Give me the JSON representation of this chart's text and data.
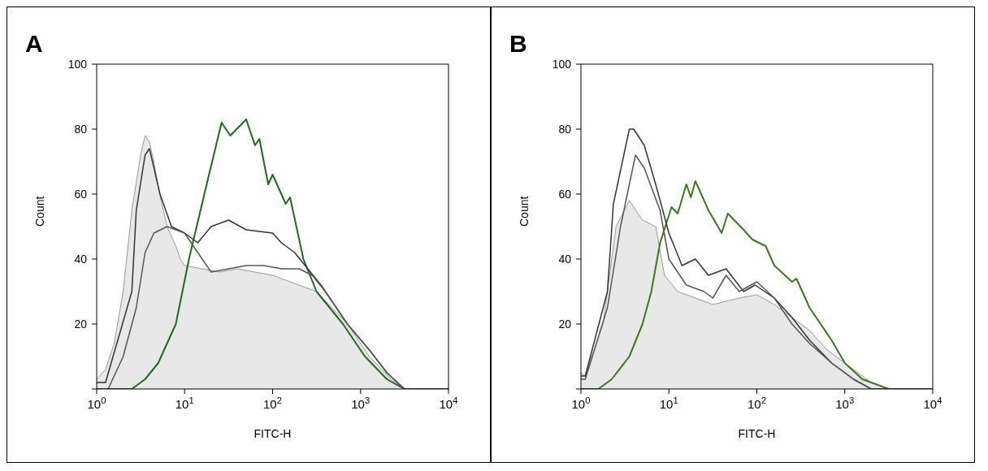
{
  "chart_data": [
    {
      "type": "line",
      "title": "A",
      "xlabel": "FITC-H",
      "ylabel": "Count",
      "log": "x",
      "xlim": [
        1,
        10000
      ],
      "ylim": [
        0,
        100
      ],
      "xticks": [
        {
          "value": 1,
          "label": "10$^{0}$"
        },
        {
          "value": 10,
          "label": "10$^{1}$"
        },
        {
          "value": 100,
          "label": "10$^{2}$"
        },
        {
          "value": 1000,
          "label": "10$^{3}$"
        },
        {
          "value": 10000,
          "label": "10$^{4}$"
        }
      ],
      "yticks": [
        {
          "value": 0,
          "label": null
        },
        20,
        40,
        60,
        80,
        100
      ],
      "marker": "none",
      "line_style": "solid",
      "series": [
        {
          "type": "area",
          "color": "#999999",
          "x": [
            1,
            1.26,
            1.58,
            2.0,
            2.51,
            3.16,
            3.55,
            3.98,
            4.47,
            5.01,
            6.31,
            7.94,
            8.91,
            10,
            15.8,
            25.1,
            39.8,
            63.1,
            100,
            158,
            251,
            316,
            708,
            1259,
            2239,
            3162,
            10000
          ],
          "values": [
            3,
            6,
            14,
            30,
            55,
            72,
            78,
            76,
            70,
            62,
            50,
            44,
            40,
            38,
            37,
            36,
            37,
            36,
            35,
            33,
            31,
            30,
            20,
            10,
            3,
            0,
            0
          ]
        },
        {
          "color": "#1a6e1a",
          "x": [
            1,
            2.51,
            3.55,
            5.01,
            7.94,
            11.2,
            17.8,
            26.3,
            33.1,
            50.1,
            63.1,
            70.8,
            89.1,
            100,
            141,
            158,
            224,
            316,
            631,
            1122,
            1995,
            3162,
            10000
          ],
          "values": [
            0,
            0,
            3,
            8,
            20,
            40,
            63,
            82,
            78,
            83,
            75,
            77,
            63,
            66,
            57,
            59,
            40,
            30,
            20,
            10,
            3,
            0,
            0
          ]
        },
        {
          "color": "#333333",
          "x": [
            1,
            1.26,
            2.51,
            2.82,
            3.55,
            3.98,
            5.25,
            7.08,
            10,
            14.1,
            20,
            31.6,
            50.1,
            100,
            126,
            178,
            251,
            355,
            708,
            1259,
            1995,
            3162,
            10000
          ],
          "values": [
            2,
            2,
            30,
            55,
            72,
            74,
            60,
            50,
            48,
            45,
            50,
            52,
            49,
            48,
            45,
            42,
            37,
            32,
            20,
            12,
            5,
            0,
            0
          ]
        },
        {
          "color": "#555555",
          "x": [
            1,
            1.35,
            2.0,
            2.82,
            3.55,
            4.47,
            6.31,
            10,
            14.1,
            20,
            31.6,
            50.1,
            79.4,
            126,
            200,
            282,
            398,
            708,
            1259,
            1995,
            3162,
            10000
          ],
          "values": [
            0,
            0,
            10,
            25,
            42,
            48,
            50,
            48,
            42,
            36,
            37,
            38,
            38,
            37,
            37,
            35,
            30,
            20,
            12,
            5,
            0,
            0
          ]
        }
      ]
    },
    {
      "type": "line",
      "title": "B",
      "xlabel": "FITC-H",
      "ylabel": "Count",
      "log": "x",
      "xlim": [
        1,
        10000
      ],
      "ylim": [
        0,
        100
      ],
      "xticks": [
        {
          "value": 1,
          "label": "10$^{0}$"
        },
        {
          "value": 10,
          "label": "10$^{1}$"
        },
        {
          "value": 100,
          "label": "10$^{2}$"
        },
        {
          "value": 1000,
          "label": "10$^{3}$"
        },
        {
          "value": 10000,
          "label": "10$^{4}$"
        }
      ],
      "yticks": [
        {
          "value": 0,
          "label": null
        },
        20,
        40,
        60,
        80,
        100
      ],
      "marker": "none",
      "line_style": "solid",
      "series": [
        {
          "type": "area",
          "color": "#999999",
          "x": [
            1,
            1.12,
            1.78,
            2.51,
            3.55,
            5.01,
            7.08,
            8.91,
            12.6,
            20,
            31.6,
            63.1,
            100,
            158,
            251,
            398,
            631,
            1259,
            1995,
            3162,
            10000
          ],
          "values": [
            5,
            4,
            20,
            50,
            58,
            52,
            50,
            35,
            30,
            28,
            26,
            28,
            29,
            26,
            22,
            18,
            12,
            6,
            2,
            0,
            0
          ]
        },
        {
          "color": "#3a7a1a",
          "x": [
            1,
            1.58,
            2.24,
            3.55,
            5.01,
            6.31,
            7.94,
            10.7,
            12.6,
            15.8,
            17.8,
            20,
            28.2,
            39.8,
            46.8,
            70.8,
            89.1,
            126,
            158,
            251,
            282,
            398,
            708,
            1000,
            1585,
            3162,
            10000
          ],
          "values": [
            0,
            0,
            3,
            10,
            20,
            30,
            45,
            56,
            54,
            63,
            59,
            64,
            55,
            48,
            54,
            49,
            46,
            44,
            38,
            33,
            34,
            25,
            15,
            8,
            3,
            0,
            0
          ]
        },
        {
          "color": "#333333",
          "x": [
            1,
            1.12,
            2.0,
            2.34,
            3.55,
            3.98,
            5.25,
            7.08,
            10,
            14.1,
            20,
            28.2,
            44.7,
            70.8,
            95.5,
            158,
            251,
            398,
            708,
            1259,
            1995,
            10000
          ],
          "values": [
            4,
            4,
            30,
            57,
            80,
            80,
            75,
            63,
            48,
            38,
            40,
            35,
            37,
            30,
            32,
            28,
            22,
            15,
            8,
            3,
            0,
            0
          ]
        },
        {
          "color": "#555555",
          "x": [
            1,
            1.12,
            2.0,
            2.82,
            4.17,
            5.25,
            7.94,
            10,
            15.8,
            25.1,
            31.6,
            44.7,
            63.1,
            100,
            158,
            251,
            398,
            708,
            1259,
            1995,
            10000
          ],
          "values": [
            3,
            3,
            25,
            50,
            72,
            68,
            55,
            40,
            32,
            30,
            28,
            35,
            30,
            33,
            28,
            20,
            14,
            8,
            3,
            0,
            0
          ]
        }
      ]
    }
  ]
}
